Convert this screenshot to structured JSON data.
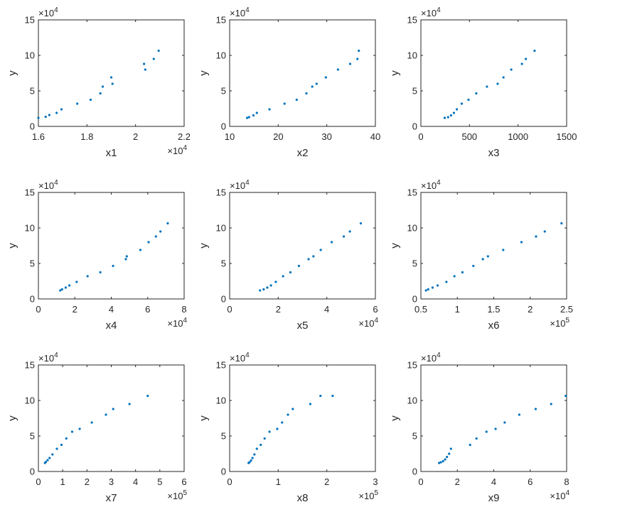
{
  "chart_data": [
    {
      "type": "scatter",
      "xlabel": "x1",
      "ylabel": "y",
      "xlim": [
        16000,
        22000
      ],
      "ylim": [
        0,
        150000
      ],
      "xticks": [
        16000,
        18000,
        20000,
        22000
      ],
      "xtick_labels": [
        "1.6",
        "1.8",
        "2",
        "2.2"
      ],
      "x_exponent": "4",
      "yticks": [
        0,
        50000,
        100000,
        150000
      ],
      "ytick_labels": [
        "0",
        "5",
        "10",
        "15"
      ],
      "y_exponent": "4",
      "x": [
        16000,
        16300,
        16450,
        16750,
        16950,
        17600,
        18150,
        18550,
        18650,
        19000,
        19050,
        20350,
        20400,
        20750,
        20950
      ],
      "y": [
        12000,
        13500,
        16000,
        19000,
        24000,
        32000,
        37500,
        46500,
        56000,
        69000,
        60000,
        88000,
        80000,
        95000,
        106500
      ],
      "color": "#0072bd"
    },
    {
      "type": "scatter",
      "xlabel": "x2",
      "ylabel": "y",
      "xlim": [
        10,
        40
      ],
      "ylim": [
        0,
        150000
      ],
      "xticks": [
        10,
        20,
        30,
        40
      ],
      "xtick_labels": [
        "10",
        "20",
        "30",
        "40"
      ],
      "x_exponent": "",
      "yticks": [
        0,
        50000,
        100000,
        150000
      ],
      "ytick_labels": [
        "0",
        "5",
        "10",
        "15"
      ],
      "y_exponent": "4",
      "x": [
        13.6,
        14.0,
        14.9,
        15.6,
        18.2,
        21.3,
        23.8,
        25.8,
        27.0,
        27.9,
        29.8,
        32.3,
        34.8,
        36.3,
        36.6
      ],
      "y": [
        12000,
        13000,
        15500,
        19000,
        24000,
        32000,
        37500,
        46500,
        56000,
        60000,
        69000,
        80000,
        88000,
        95000,
        106500
      ],
      "color": "#0072bd"
    },
    {
      "type": "scatter",
      "xlabel": "x3",
      "ylabel": "y",
      "xlim": [
        0,
        1500
      ],
      "ylim": [
        0,
        150000
      ],
      "xticks": [
        0,
        500,
        1000,
        1500
      ],
      "xtick_labels": [
        "0",
        "500",
        "1000",
        "1500"
      ],
      "x_exponent": "",
      "yticks": [
        0,
        50000,
        100000,
        150000
      ],
      "ytick_labels": [
        "0",
        "5",
        "10",
        "15"
      ],
      "y_exponent": "4",
      "x": [
        245,
        280,
        310,
        340,
        370,
        420,
        490,
        570,
        680,
        790,
        850,
        930,
        1040,
        1080,
        1170
      ],
      "y": [
        12000,
        13000,
        15500,
        19000,
        24000,
        32000,
        37500,
        46500,
        56000,
        60000,
        69000,
        80000,
        88000,
        95000,
        106500
      ],
      "color": "#0072bd"
    },
    {
      "type": "scatter",
      "xlabel": "x4",
      "ylabel": "y",
      "xlim": [
        0,
        80000
      ],
      "ylim": [
        0,
        150000
      ],
      "xticks": [
        0,
        20000,
        40000,
        60000,
        80000
      ],
      "xtick_labels": [
        "0",
        "2",
        "4",
        "6",
        "8"
      ],
      "x_exponent": "4",
      "yticks": [
        0,
        50000,
        100000,
        150000
      ],
      "ytick_labels": [
        "0",
        "5",
        "10",
        "15"
      ],
      "y_exponent": "4",
      "x": [
        12000,
        13000,
        15000,
        17000,
        21000,
        27000,
        34000,
        41000,
        48000,
        48500,
        56000,
        60500,
        64500,
        67000,
        71000
      ],
      "y": [
        12000,
        13500,
        16000,
        19000,
        24000,
        32000,
        37500,
        46500,
        56000,
        60000,
        69000,
        80000,
        88000,
        95000,
        106500
      ],
      "color": "#0072bd"
    },
    {
      "type": "scatter",
      "xlabel": "x5",
      "ylabel": "y",
      "xlim": [
        0,
        60000
      ],
      "ylim": [
        0,
        150000
      ],
      "xticks": [
        0,
        20000,
        40000,
        60000
      ],
      "xtick_labels": [
        "0",
        "2",
        "4",
        "6"
      ],
      "x_exponent": "4",
      "yticks": [
        0,
        50000,
        100000,
        150000
      ],
      "ytick_labels": [
        "0",
        "5",
        "10",
        "15"
      ],
      "y_exponent": "4",
      "x": [
        12500,
        14000,
        15500,
        17000,
        19000,
        22000,
        25000,
        28500,
        32500,
        34500,
        37500,
        42000,
        47000,
        49500,
        54000
      ],
      "y": [
        12000,
        13500,
        16000,
        19000,
        24000,
        32000,
        37500,
        46500,
        56000,
        60000,
        69000,
        80000,
        88000,
        95000,
        106500
      ],
      "color": "#0072bd"
    },
    {
      "type": "scatter",
      "xlabel": "x6",
      "ylabel": "y",
      "xlim": [
        50000,
        250000
      ],
      "ylim": [
        0,
        150000
      ],
      "xticks": [
        50000,
        100000,
        150000,
        200000,
        250000
      ],
      "xtick_labels": [
        "0.5",
        "1",
        "1.5",
        "2",
        "2.5"
      ],
      "x_exponent": "5",
      "yticks": [
        0,
        50000,
        100000,
        150000
      ],
      "ytick_labels": [
        "0",
        "5",
        "10",
        "15"
      ],
      "y_exponent": "4",
      "x": [
        57000,
        60000,
        66000,
        73000,
        85000,
        96000,
        107000,
        122000,
        135000,
        142000,
        163000,
        188000,
        208000,
        220000,
        243000
      ],
      "y": [
        12000,
        13500,
        16000,
        19000,
        24000,
        32000,
        37500,
        46500,
        56000,
        60000,
        69000,
        80000,
        88000,
        95000,
        106500
      ],
      "color": "#0072bd"
    },
    {
      "type": "scatter",
      "xlabel": "x7",
      "ylabel": "y",
      "xlim": [
        0,
        600000
      ],
      "ylim": [
        0,
        150000
      ],
      "xticks": [
        0,
        100000,
        200000,
        300000,
        400000,
        500000,
        600000
      ],
      "xtick_labels": [
        "0",
        "1",
        "2",
        "3",
        "4",
        "5",
        "6"
      ],
      "x_exponent": "5",
      "yticks": [
        0,
        50000,
        100000,
        150000
      ],
      "ytick_labels": [
        "0",
        "5",
        "10",
        "15"
      ],
      "y_exponent": "4",
      "x": [
        27000,
        31000,
        38000,
        46000,
        58000,
        76000,
        95000,
        115000,
        139000,
        170000,
        220000,
        278000,
        308000,
        375000,
        450000
      ],
      "y": [
        12000,
        13500,
        16000,
        19000,
        24000,
        32000,
        37500,
        46500,
        56000,
        60000,
        69000,
        80000,
        88000,
        95000,
        106500
      ],
      "color": "#0072bd"
    },
    {
      "type": "scatter",
      "xlabel": "x8",
      "ylabel": "y",
      "xlim": [
        0,
        300000
      ],
      "ylim": [
        0,
        150000
      ],
      "xticks": [
        0,
        100000,
        200000,
        300000
      ],
      "xtick_labels": [
        "0",
        "1",
        "2",
        "3"
      ],
      "x_exponent": "5",
      "yticks": [
        0,
        50000,
        100000,
        150000
      ],
      "ytick_labels": [
        "0",
        "5",
        "10",
        "15"
      ],
      "y_exponent": "4",
      "x": [
        39000,
        41000,
        44000,
        47000,
        51000,
        56000,
        64000,
        72000,
        82000,
        98000,
        108000,
        120000,
        130000,
        166000,
        187000,
        212000
      ],
      "y": [
        12000,
        13000,
        15500,
        19000,
        24000,
        32000,
        37500,
        46500,
        56000,
        60000,
        69000,
        80000,
        88000,
        95000,
        106500,
        106500
      ],
      "color": "#0072bd"
    },
    {
      "type": "scatter",
      "xlabel": "x9",
      "ylabel": "y",
      "xlim": [
        0,
        80000
      ],
      "ylim": [
        0,
        150000
      ],
      "xticks": [
        0,
        20000,
        40000,
        60000,
        80000
      ],
      "xtick_labels": [
        "0",
        "2",
        "4",
        "6",
        "8"
      ],
      "x_exponent": "4",
      "yticks": [
        0,
        50000,
        100000,
        150000
      ],
      "ytick_labels": [
        "0",
        "5",
        "10",
        "15"
      ],
      "y_exponent": "4",
      "x": [
        10000,
        11000,
        12200,
        13300,
        14300,
        15500,
        16500,
        27000,
        30500,
        36000,
        41000,
        46000,
        54000,
        63000,
        71500,
        79500
      ],
      "y": [
        12000,
        13000,
        14500,
        17000,
        20500,
        25000,
        32000,
        37500,
        46500,
        56000,
        60000,
        69000,
        80000,
        88000,
        95000,
        106500
      ],
      "color": "#0072bd"
    }
  ]
}
